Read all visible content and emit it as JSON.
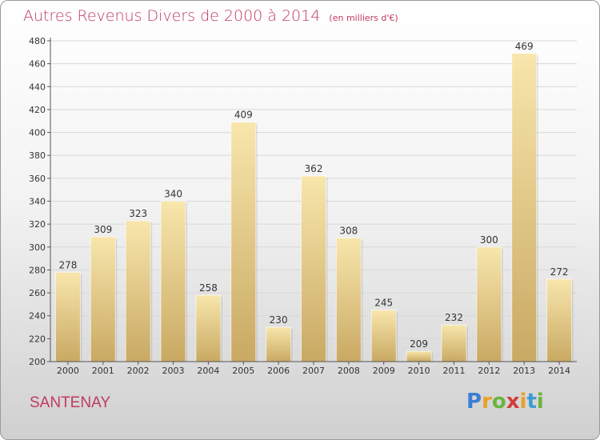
{
  "title": "Autres Revenus Divers de 2000 à 2014",
  "unit": "(en milliers d'€)",
  "commune": "SANTENAY",
  "brand": {
    "letters": [
      "P",
      "r",
      "o",
      "x",
      "i",
      "t",
      "i"
    ],
    "colors": [
      "#3b7ed4",
      "#e8a126",
      "#6cb33f",
      "#d33c3c",
      "#e8a126",
      "#3b9bd4",
      "#6cb33f"
    ]
  },
  "colors": {
    "title": "#c03a5e",
    "bar_light": "#f6e2a4",
    "bar_dark": "#c8a862",
    "grid": "#d6d6d6"
  },
  "chart_data": {
    "type": "bar",
    "categories": [
      "2000",
      "2001",
      "2002",
      "2003",
      "2004",
      "2005",
      "2006",
      "2007",
      "2008",
      "2009",
      "2010",
      "2011",
      "2012",
      "2013",
      "2014"
    ],
    "values": [
      278,
      309,
      323,
      340,
      258,
      409,
      230,
      362,
      308,
      245,
      209,
      232,
      300,
      469,
      272
    ],
    "yticks": [
      200,
      220,
      240,
      260,
      280,
      300,
      320,
      340,
      360,
      380,
      400,
      420,
      440,
      460,
      480
    ],
    "ylim": [
      200,
      480
    ],
    "grid": true,
    "title": "Autres Revenus Divers de 2000 à 2014",
    "xlabel": "",
    "ylabel": ""
  }
}
